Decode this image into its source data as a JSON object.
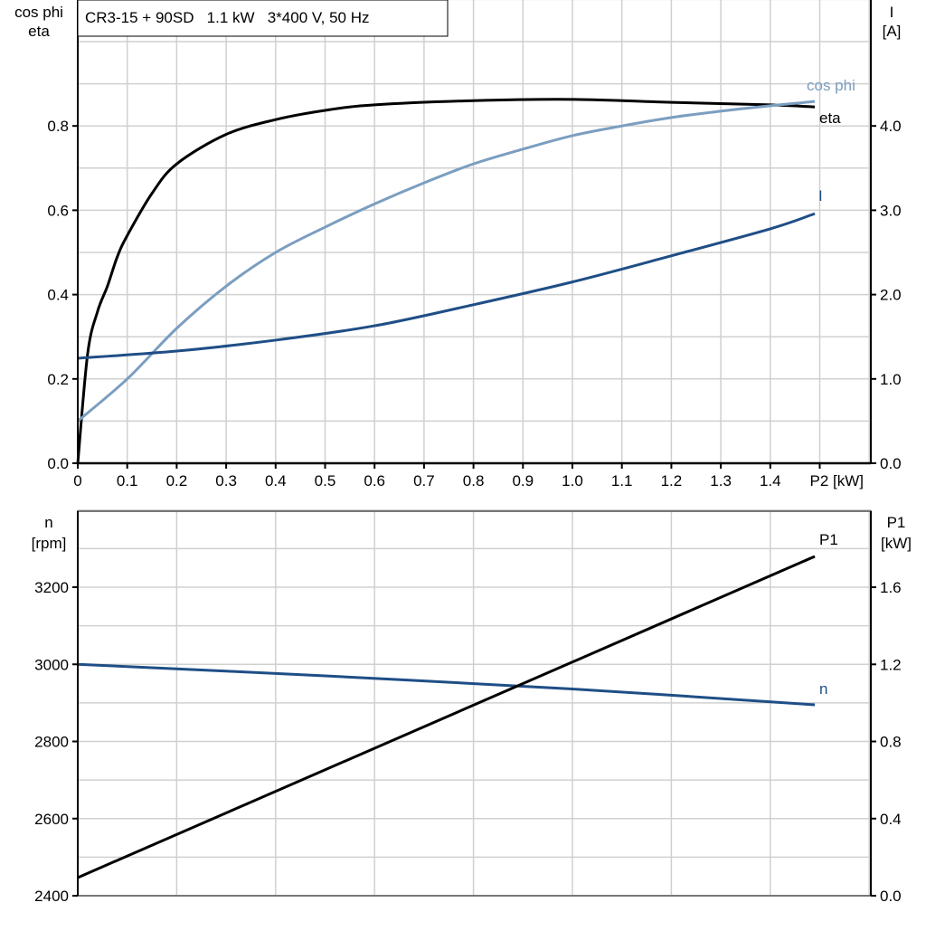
{
  "chart_data": [
    {
      "type": "line",
      "title": "CR3-15 + 90SD   1.1 kW   3*400 V, 50 Hz",
      "xlabel": "P2 [kW]",
      "ylabel_left": [
        "cos phi",
        "eta"
      ],
      "ylabel_right": [
        "I",
        "[A]"
      ],
      "xlim": [
        0,
        1.6
      ],
      "ylim_left": [
        0,
        1.1
      ],
      "ylim_right": [
        0,
        5.5
      ],
      "x_ticks": [
        "0",
        "0.1",
        "0.2",
        "0.3",
        "0.4",
        "0.5",
        "0.6",
        "0.7",
        "0.8",
        "0.9",
        "1.0",
        "1.1",
        "1.2",
        "1.3",
        "1.4"
      ],
      "y_ticks_left": [
        "0.0",
        "0.2",
        "0.4",
        "0.6",
        "0.8"
      ],
      "y_ticks_right": [
        "0.0",
        "1.0",
        "2.0",
        "3.0",
        "4.0"
      ],
      "grid": true,
      "series": [
        {
          "name": "eta",
          "axis": "left",
          "color": "#000000",
          "x": [
            0,
            0.02,
            0.04,
            0.06,
            0.08,
            0.1,
            0.15,
            0.2,
            0.3,
            0.4,
            0.5,
            0.6,
            0.8,
            1.0,
            1.2,
            1.4,
            1.49
          ],
          "y": [
            0,
            0.26,
            0.36,
            0.42,
            0.49,
            0.54,
            0.64,
            0.71,
            0.78,
            0.815,
            0.837,
            0.85,
            0.86,
            0.863,
            0.856,
            0.85,
            0.845
          ]
        },
        {
          "name": "cos phi",
          "axis": "left",
          "color": "#7a9ec0",
          "x": [
            0,
            0.1,
            0.2,
            0.3,
            0.4,
            0.5,
            0.6,
            0.7,
            0.8,
            0.9,
            1.0,
            1.1,
            1.2,
            1.3,
            1.4,
            1.49
          ],
          "y": [
            0.1,
            0.2,
            0.32,
            0.42,
            0.5,
            0.56,
            0.615,
            0.665,
            0.71,
            0.745,
            0.777,
            0.8,
            0.82,
            0.835,
            0.848,
            0.858
          ]
        },
        {
          "name": "I",
          "axis": "right",
          "color": "#1f4e86",
          "x": [
            0,
            0.2,
            0.4,
            0.6,
            0.8,
            1.0,
            1.2,
            1.4,
            1.49
          ],
          "y": [
            1.245,
            1.33,
            1.46,
            1.63,
            1.88,
            2.15,
            2.46,
            2.78,
            2.96
          ]
        }
      ]
    },
    {
      "type": "line",
      "xlim": [
        0,
        1.6
      ],
      "ylabel_left": [
        "n",
        "[rpm]"
      ],
      "ylabel_right": [
        "P1",
        "[kW]"
      ],
      "ylim_left": [
        2400,
        3400
      ],
      "ylim_right": [
        0,
        2.0
      ],
      "y_ticks_left": [
        "2400",
        "2600",
        "2800",
        "3000",
        "3200"
      ],
      "y_ticks_right": [
        "0.0",
        "0.4",
        "0.8",
        "1.2",
        "1.6"
      ],
      "grid": true,
      "series": [
        {
          "name": "n",
          "axis": "left",
          "color": "#1f4e86",
          "x": [
            0,
            0.5,
            1.0,
            1.49
          ],
          "y": [
            3000,
            2970,
            2936,
            2895
          ]
        },
        {
          "name": "P1",
          "axis": "right",
          "color": "#000000",
          "x": [
            0,
            1.49
          ],
          "y": [
            0.094,
            1.76
          ]
        }
      ]
    }
  ]
}
